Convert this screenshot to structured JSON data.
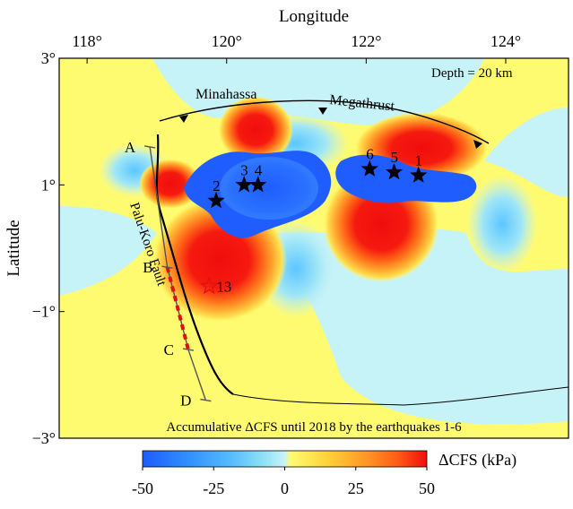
{
  "map": {
    "x_axis_title": "Longitude",
    "y_axis_title": "Latitude",
    "depth_label": "Depth = 20 km",
    "caption": "Accumulative ΔCFS until 2018 by the earthquakes 1-6",
    "lon_ticks": [
      {
        "value": 118,
        "label": "118°"
      },
      {
        "value": 120,
        "label": "120°"
      },
      {
        "value": 122,
        "label": "122°"
      },
      {
        "value": 124,
        "label": "124°"
      }
    ],
    "lat_ticks": [
      {
        "value": 3,
        "label": "3°"
      },
      {
        "value": 1,
        "label": "1°"
      },
      {
        "value": -1,
        "label": "−1°"
      },
      {
        "value": -3,
        "label": "−3°"
      }
    ],
    "lon_range": [
      117.6,
      124.9
    ],
    "lat_range": [
      -3.0,
      3.0
    ],
    "fault_labels": {
      "minahassa": "Minahassa",
      "megathrust": "Megathrust",
      "palu_koro": "Palu-Koro Fault"
    },
    "profile_points": [
      {
        "label": "A",
        "lon": 118.9,
        "lat": 1.6
      },
      {
        "label": "B",
        "lon": 119.15,
        "lat": -0.3
      },
      {
        "label": "C",
        "lon": 119.45,
        "lat": -1.6
      },
      {
        "label": "D",
        "lon": 119.7,
        "lat": -2.4
      }
    ],
    "earthquakes": [
      {
        "id": "1",
        "lon": 122.75,
        "lat": 1.15,
        "filled": true
      },
      {
        "id": "2",
        "lon": 119.85,
        "lat": 0.75,
        "filled": true
      },
      {
        "id": "3",
        "lon": 120.25,
        "lat": 1.0,
        "filled": true
      },
      {
        "id": "4",
        "lon": 120.45,
        "lat": 1.0,
        "filled": true
      },
      {
        "id": "5",
        "lon": 122.4,
        "lat": 1.2,
        "filled": true
      },
      {
        "id": "6",
        "lon": 122.05,
        "lat": 1.25,
        "filled": true
      },
      {
        "id": "13",
        "lon": 119.75,
        "lat": -0.6,
        "filled": false
      }
    ],
    "colorbar": {
      "title": "ΔCFS (kPa)",
      "ticks": [
        "-50",
        "-25",
        "0",
        "25",
        "50"
      ],
      "tick_values": [
        -50,
        -25,
        0,
        25,
        50
      ],
      "colors": [
        "#1e5bff",
        "#2f8cff",
        "#52b8ff",
        "#8ae0f5",
        "#c6f3f7",
        "#fffb70",
        "#ffd23a",
        "#ff9a28",
        "#ff5a14",
        "#f00d0d"
      ]
    },
    "colors": {
      "neutral_pos": "#fffb70",
      "neutral_neg": "#c6f3f7",
      "strong_neg": "#1f5dff",
      "strong_pos": "#f00d0d"
    }
  }
}
